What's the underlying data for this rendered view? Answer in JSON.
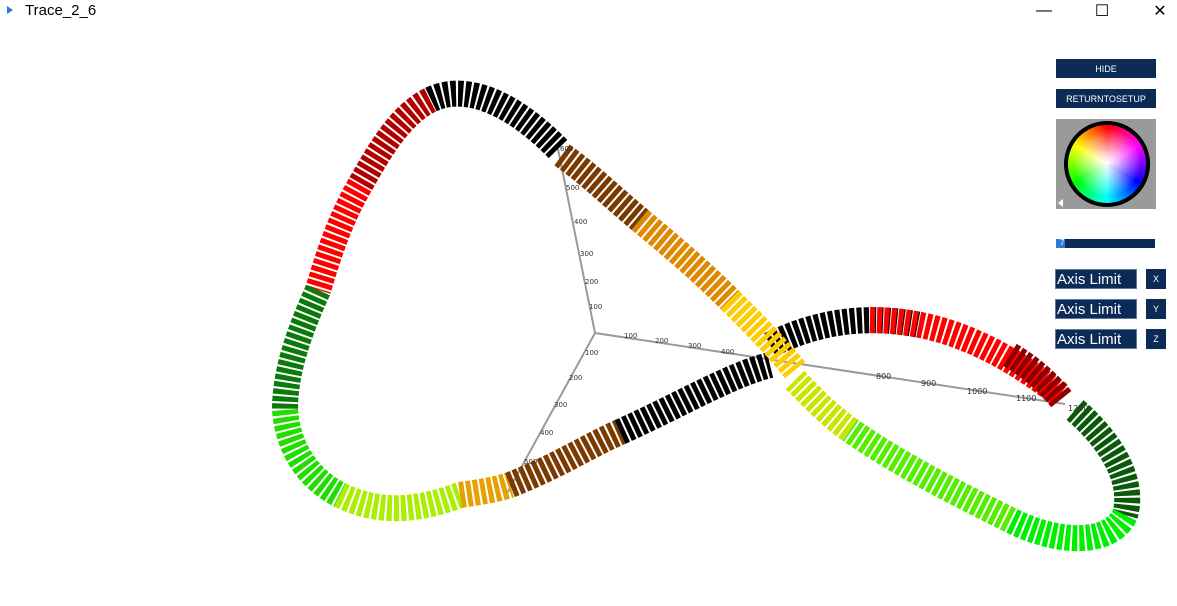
{
  "window": {
    "title": "Trace_2_6",
    "minimize_glyph": "—",
    "maximize_glyph": "☐",
    "close_glyph": "✕"
  },
  "panel": {
    "hide_label": "HIDE",
    "return_label": "RETURNTOSETUP",
    "slider_value": "7",
    "axis_rows": [
      {
        "field_value": "Axis Limit",
        "button_label": "X"
      },
      {
        "field_value": "Axis Limit",
        "button_label": "Y"
      },
      {
        "field_value": "Axis Limit",
        "button_label": "Z"
      }
    ]
  },
  "axes": {
    "x_ticks": [
      "100",
      "200",
      "300",
      "400",
      "800",
      "900",
      "1000",
      "1100",
      "1200"
    ],
    "y_ticks": [
      "600",
      "500",
      "400",
      "300",
      "200",
      "100"
    ],
    "z_ticks": [
      "100",
      "200",
      "300",
      "400",
      "500"
    ]
  },
  "colors": {
    "panel_bg": "#0b2a55",
    "trace_gradient": [
      "#000000",
      "#7a3a00",
      "#d98a00",
      "#ffcc00",
      "#c8e600",
      "#33ff00",
      "#0a8a0a",
      "#003300",
      "#8b0000",
      "#ff0000"
    ]
  }
}
